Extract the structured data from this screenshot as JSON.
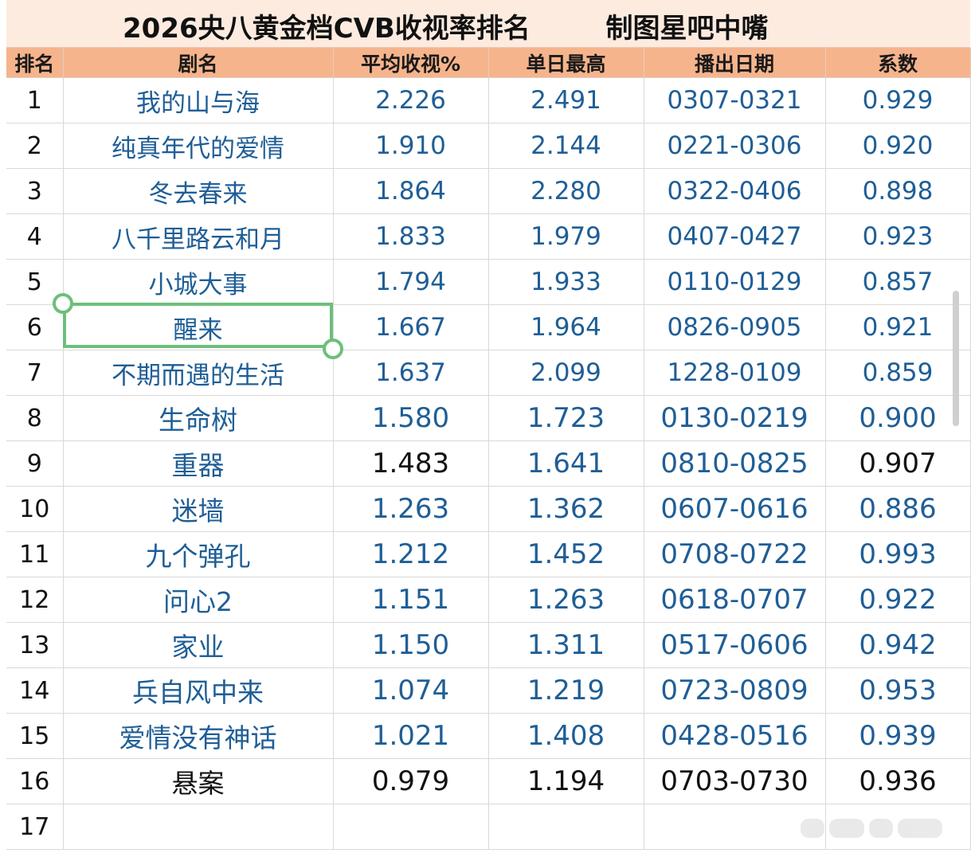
{
  "title": "2026央八黄金档CVB收视率排名        制图星吧中嘴",
  "headers": [
    "排名",
    "剧名",
    "平均收视%",
    "单日最高",
    "播出日期",
    "系数"
  ],
  "rows": [
    {
      "rank": "1",
      "name": "我的山与海",
      "avg": "2.226",
      "peak": "2.491",
      "dates": "0307-0321",
      "coef": "0.929"
    },
    {
      "rank": "2",
      "name": "纯真年代的爱情",
      "avg": "1.910",
      "peak": "2.144",
      "dates": "0221-0306",
      "coef": "0.920"
    },
    {
      "rank": "3",
      "name": "冬去春来",
      "avg": "1.864",
      "peak": "2.280",
      "dates": "0322-0406",
      "coef": "0.898"
    },
    {
      "rank": "4",
      "name": "八千里路云和月",
      "avg": "1.833",
      "peak": "1.979",
      "dates": "0407-0427",
      "coef": "0.923"
    },
    {
      "rank": "5",
      "name": "小城大事",
      "avg": "1.794",
      "peak": "1.933",
      "dates": "0110-0129",
      "coef": "0.857"
    },
    {
      "rank": "6",
      "name": "醒来",
      "avg": "1.667",
      "peak": "1.964",
      "dates": "0826-0905",
      "coef": "0.921"
    },
    {
      "rank": "7",
      "name": "不期而遇的生活",
      "avg": "1.637",
      "peak": "2.099",
      "dates": "1228-0109",
      "coef": "0.859"
    },
    {
      "rank": "8",
      "name": "生命树",
      "avg": "1.580",
      "peak": "1.723",
      "dates": "0130-0219",
      "coef": "0.900"
    },
    {
      "rank": "9",
      "name": "重器",
      "avg": "1.483",
      "peak": "1.641",
      "dates": "0810-0825",
      "coef": "0.907"
    },
    {
      "rank": "10",
      "name": "迷墙",
      "avg": "1.263",
      "peak": "1.362",
      "dates": "0607-0616",
      "coef": "0.886"
    },
    {
      "rank": "11",
      "name": "九个弹孔",
      "avg": "1.212",
      "peak": "1.452",
      "dates": "0708-0722",
      "coef": "0.993"
    },
    {
      "rank": "12",
      "name": "问心2",
      "avg": "1.151",
      "peak": "1.263",
      "dates": "0618-0707",
      "coef": "0.922"
    },
    {
      "rank": "13",
      "name": "家业",
      "avg": "1.150",
      "peak": "1.311",
      "dates": "0517-0606",
      "coef": "0.942"
    },
    {
      "rank": "14",
      "name": "兵自风中来",
      "avg": "1.074",
      "peak": "1.219",
      "dates": "0723-0809",
      "coef": "0.953"
    },
    {
      "rank": "15",
      "name": "爱情没有神话",
      "avg": "1.021",
      "peak": "1.408",
      "dates": "0428-0516",
      "coef": "0.939"
    },
    {
      "rank": "16",
      "name": "悬案",
      "avg": "0.979",
      "peak": "1.194",
      "dates": "0703-0730",
      "coef": "0.936"
    },
    {
      "rank": "17",
      "name": "",
      "avg": "",
      "peak": "",
      "dates": "",
      "coef": ""
    }
  ],
  "colors": {
    "title_bg": "#fdebe0",
    "header_bg": "#f6b48c",
    "cell_text_blue": "#1f5e96",
    "cell_text_dark": "#111111",
    "selection": "#6cc07a"
  },
  "selection": {
    "row": "6",
    "column": "剧名"
  }
}
